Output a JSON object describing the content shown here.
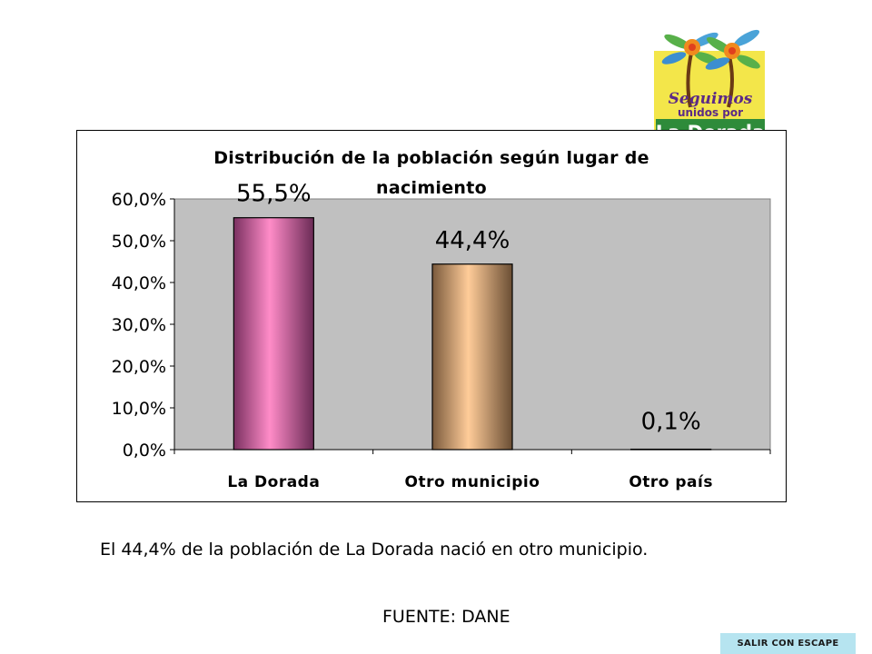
{
  "logo": {
    "line1": "Seguimos",
    "line2": "unidos por",
    "line3": "La Dorada"
  },
  "chart_data": {
    "type": "bar",
    "title": "Distribución de la población según lugar de nacimiento",
    "categories": [
      "La Dorada",
      "Otro municipio",
      "Otro país"
    ],
    "values": [
      55.5,
      44.4,
      0.1
    ],
    "data_labels": [
      "55,5%",
      "44,4%",
      "0,1%"
    ],
    "bar_colors": [
      "#ff8cc8",
      "#ffcc99",
      "#9999ff"
    ],
    "ylim": [
      0,
      60
    ],
    "yticks": [
      "0,0%",
      "10,0%",
      "20,0%",
      "30,0%",
      "40,0%",
      "50,0%",
      "60,0%"
    ],
    "plot_background": "#c0c0c0",
    "xlabel": "",
    "ylabel": ""
  },
  "caption": "El 44,4% de la población de La Dorada nació en otro municipio.",
  "source": "FUENTE: DANE",
  "exit_button": "SALIR CON ESCAPE"
}
